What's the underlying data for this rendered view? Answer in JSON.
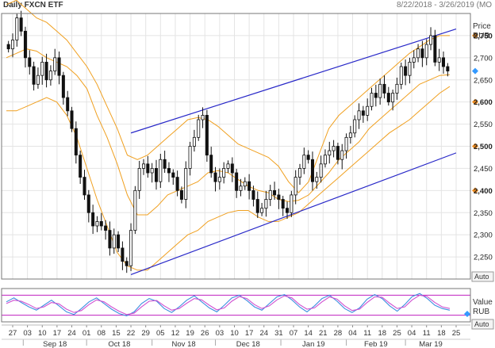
{
  "header": {
    "title": "Daily FXCN ETF",
    "date_range": "8/22/2018 - 3/26/2019 (MO"
  },
  "price_panel": {
    "axis_title": "Price",
    "axis_unit": "RUB",
    "auto_label": "Auto"
  },
  "stoch_panel": {
    "axis_title": "Value",
    "axis_unit": "RUB",
    "auto_label": "Auto"
  },
  "x_axis": {
    "day_ticks": [
      "27",
      "03",
      "10",
      "17",
      "24",
      "01",
      "08",
      "15",
      "22",
      "29",
      "05",
      "12",
      "19",
      "26",
      "03",
      "10",
      "17",
      "24",
      "31",
      "07",
      "14",
      "21",
      "28",
      "04",
      "11",
      "18",
      "25",
      "04",
      "11",
      "18",
      "25"
    ],
    "month_labels": [
      "Sep 18",
      "Oct 18",
      "Nov 18",
      "Dec 18",
      "Jan 19",
      "Feb 19",
      "Mar 19"
    ]
  },
  "chart_data": [
    {
      "type": "candlestick",
      "title": "Daily FXCN ETF",
      "ylabel": "Price RUB",
      "ylim": [
        2200,
        2800
      ],
      "y_ticks": [
        "2,750",
        "2,700",
        "2,650",
        "2,600",
        "2,550",
        "2,500",
        "2,450",
        "2,400",
        "2,350",
        "2,300",
        "2,250"
      ],
      "highlighted_ticks": [
        "2,750",
        "2,600",
        "2,500",
        "2,400"
      ],
      "x_start": "2018-08-24",
      "x_end": "2019-03-22",
      "closes": [
        2720,
        2740,
        2790,
        2760,
        2700,
        2680,
        2640,
        2660,
        2690,
        2650,
        2670,
        2700,
        2660,
        2610,
        2580,
        2540,
        2480,
        2430,
        2390,
        2350,
        2320,
        2330,
        2320,
        2310,
        2270,
        2300,
        2270,
        2240,
        2230,
        2310,
        2400,
        2450,
        2460,
        2440,
        2450,
        2420,
        2470,
        2450,
        2440,
        2430,
        2400,
        2380,
        2450,
        2500,
        2520,
        2560,
        2570,
        2480,
        2440,
        2420,
        2430,
        2450,
        2460,
        2440,
        2400,
        2410,
        2420,
        2400,
        2380,
        2350,
        2360,
        2380,
        2400,
        2390,
        2380,
        2360,
        2350,
        2390,
        2430,
        2450,
        2480,
        2470,
        2420,
        2430,
        2460,
        2480,
        2490,
        2500,
        2470,
        2490,
        2520,
        2530,
        2560,
        2580,
        2570,
        2590,
        2620,
        2610,
        2640,
        2620,
        2600,
        2620,
        2640,
        2680,
        2660,
        2690,
        2700,
        2720,
        2700,
        2730,
        2750,
        2690,
        2700,
        2680,
        2670
      ],
      "bollinger_bands": {
        "upper": [
          2820,
          2830,
          2810,
          2790,
          2780,
          2760,
          2740,
          2710,
          2680,
          2640,
          2590,
          2540,
          2480,
          2470,
          2480,
          2500,
          2520,
          2540,
          2560,
          2565,
          2560,
          2545,
          2525,
          2505,
          2495,
          2485,
          2475,
          2455,
          2420,
          2395,
          2420,
          2480,
          2540,
          2570,
          2590,
          2610,
          2630,
          2650,
          2670,
          2690,
          2710,
          2725,
          2740,
          2750,
          2750
        ],
        "middle": [
          2700,
          2710,
          2720,
          2715,
          2700,
          2690,
          2680,
          2660,
          2630,
          2570,
          2520,
          2460,
          2390,
          2345,
          2345,
          2365,
          2390,
          2400,
          2410,
          2420,
          2440,
          2445,
          2440,
          2425,
          2410,
          2400,
          2395,
          2380,
          2375,
          2378,
          2390,
          2415,
          2440,
          2470,
          2490,
          2510,
          2540,
          2560,
          2580,
          2600,
          2620,
          2640,
          2650,
          2660,
          2662
        ],
        "lower": [
          2580,
          2580,
          2590,
          2600,
          2610,
          2600,
          2570,
          2520,
          2450,
          2380,
          2320,
          2260,
          2230,
          2220,
          2220,
          2240,
          2260,
          2280,
          2300,
          2310,
          2330,
          2340,
          2350,
          2355,
          2355,
          2340,
          2330,
          2330,
          2340,
          2350,
          2370,
          2390,
          2410,
          2430,
          2450,
          2470,
          2490,
          2510,
          2530,
          2545,
          2560,
          2580,
          2600,
          2620,
          2635
        ]
      },
      "trend_channel": {
        "upper_line": {
          "start": [
            "2018-10-22",
            2530
          ],
          "end": [
            "2019-03-25",
            2765
          ]
        },
        "lower_line": {
          "start": [
            "2018-10-22",
            2210
          ],
          "end": [
            "2019-03-25",
            2485
          ]
        }
      },
      "last_price": 2670
    },
    {
      "type": "line",
      "title": "",
      "ylabel": "Value RUB",
      "ylim": [
        0,
        100
      ],
      "reference_lines": [
        80,
        20
      ],
      "series": [
        {
          "color": "#3d8fe0",
          "values": [
            60,
            72,
            58,
            45,
            35,
            50,
            65,
            48,
            30,
            22,
            40,
            60,
            72,
            55,
            38,
            25,
            18,
            30,
            55,
            70,
            62,
            40,
            28,
            45,
            65,
            78,
            60,
            42,
            30,
            50,
            72,
            80,
            64,
            45,
            35,
            55,
            75,
            82,
            66,
            45,
            30,
            48,
            70,
            80,
            62,
            40,
            28,
            42,
            68,
            82,
            70,
            48,
            32,
            52,
            76,
            85,
            70,
            50,
            40,
            35
          ]
        },
        {
          "color": "#d050d0",
          "values": [
            55,
            65,
            62,
            52,
            40,
            45,
            58,
            54,
            38,
            28,
            34,
            52,
            66,
            60,
            45,
            32,
            22,
            26,
            45,
            62,
            64,
            48,
            35,
            40,
            56,
            70,
            66,
            50,
            36,
            42,
            62,
            76,
            70,
            52,
            40,
            48,
            66,
            78,
            72,
            52,
            38,
            42,
            60,
            75,
            68,
            48,
            34,
            38,
            58,
            75,
            74,
            56,
            40,
            45,
            66,
            80,
            76,
            58,
            45,
            40
          ]
        }
      ]
    }
  ],
  "colors": {
    "candle": "#111111",
    "bollinger": "#f0a020",
    "channel": "#2828c8",
    "reference": "#c020c0",
    "highlight_marker": "#f08c1e",
    "grid": "#e4e4e4",
    "panel_border": "#777777",
    "last_price_marker": "#3399ff"
  }
}
